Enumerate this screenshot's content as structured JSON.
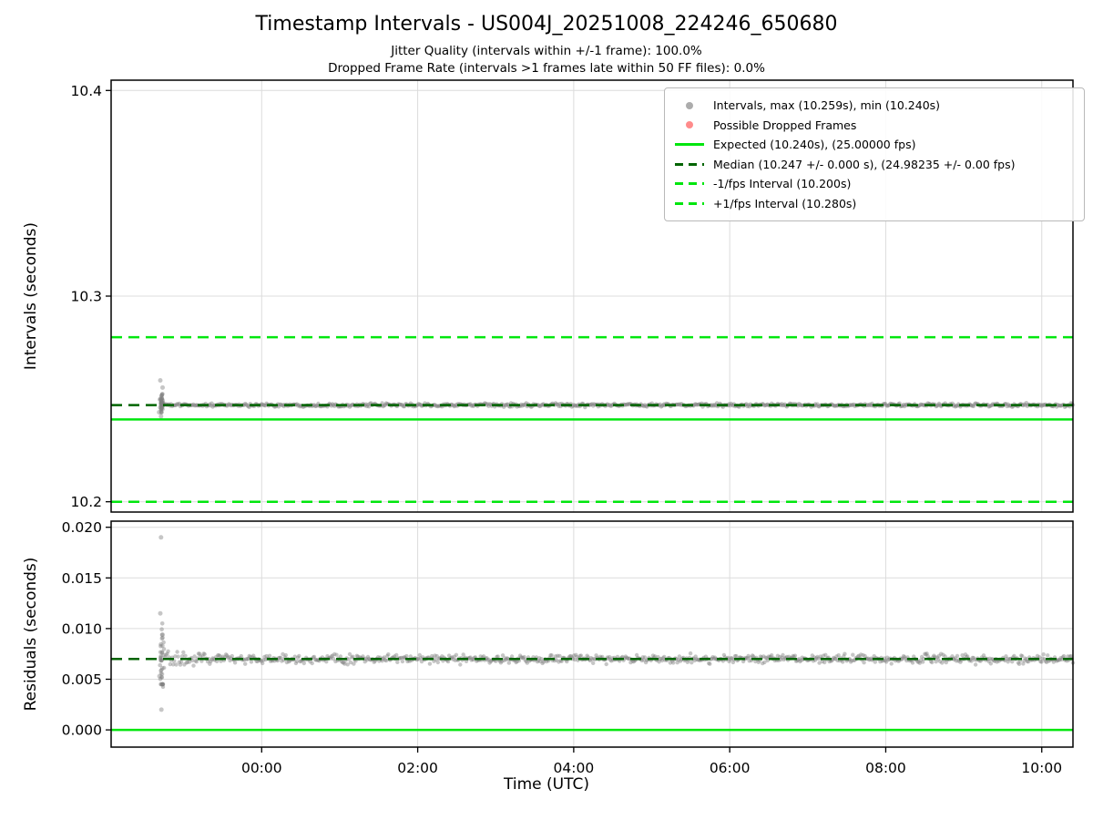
{
  "header": {
    "title": "Timestamp Intervals - US004J_20251008_224246_650680",
    "subtitle_jitter": "Jitter Quality (intervals within +/-1 frame): 100.0%",
    "subtitle_dropped": "Dropped Frame Rate (intervals >1 frames late within 50 FF files): 0.0%"
  },
  "colors": {
    "bright_green": "#00e60e",
    "dark_green": "#006400",
    "scatter_gray": "#808080",
    "dropped_red": "#ff4d4d",
    "grid": "#dcdcdc",
    "axis": "#000000",
    "legend_border": "#b9b9b9"
  },
  "chart_data": [
    {
      "type": "scatter",
      "name": "intervals",
      "ylabel": "Intervals (seconds)",
      "xlabel": "",
      "ylim": [
        10.195,
        10.405
      ],
      "xlim_hours": [
        -1.93,
        10.4
      ],
      "grid": true,
      "yticks": [
        {
          "value": 10.2,
          "label": "10.2"
        },
        {
          "value": 10.3,
          "label": "10.3"
        },
        {
          "value": 10.4,
          "label": "10.4"
        }
      ],
      "xticks": [
        {
          "hour": 0,
          "label": "00:00"
        },
        {
          "hour": 2,
          "label": "02:00"
        },
        {
          "hour": 4,
          "label": "04:00"
        },
        {
          "hour": 6,
          "label": "06:00"
        },
        {
          "hour": 8,
          "label": "08:00"
        },
        {
          "hour": 10,
          "label": "10:00"
        }
      ],
      "lines": [
        {
          "name": "expected",
          "value": 10.24,
          "style": "solid",
          "color": "bright_green"
        },
        {
          "name": "minus-1fps",
          "value": 10.2,
          "style": "dashed",
          "color": "bright_green"
        },
        {
          "name": "plus-1fps",
          "value": 10.28,
          "style": "dashed",
          "color": "bright_green"
        },
        {
          "name": "median",
          "value": 10.247,
          "style": "dashed",
          "color": "dark_green"
        }
      ],
      "series": {
        "band": {
          "start_hour": -1.29,
          "end_hour": 10.4,
          "value": 10.247,
          "spread": 0.0007,
          "count": 900
        },
        "cluster": {
          "hour": -1.28,
          "hour_spread": 0.02,
          "center": 10.2475,
          "spread": 0.004,
          "min": 10.2405,
          "max": 10.2565,
          "count": 45
        },
        "outliers": [
          [
            -1.3,
            10.259
          ],
          [
            -1.315,
            10.2435
          ],
          [
            -1.29,
            10.2415
          ],
          [
            -1.27,
            10.2555
          ]
        ]
      },
      "legend": [
        {
          "marker": "dot",
          "color": "scatter_gray",
          "label": "Intervals, max (10.259s), min (10.240s)"
        },
        {
          "marker": "dot",
          "color": "dropped_red",
          "label": "Possible Dropped Frames"
        },
        {
          "marker": "line-solid",
          "color": "bright_green",
          "label": "Expected (10.240s), (25.00000 fps)"
        },
        {
          "marker": "line-dashed",
          "color": "dark_green",
          "label": "Median (10.247 +/- 0.000 s), (24.98235 +/- 0.00 fps)"
        },
        {
          "marker": "line-dashed",
          "color": "bright_green",
          "label": "-1/fps Interval (10.200s)"
        },
        {
          "marker": "line-dashed",
          "color": "bright_green",
          "label": "+1/fps Interval (10.280s)"
        }
      ]
    },
    {
      "type": "scatter",
      "name": "residuals",
      "ylabel": "Residuals (seconds)",
      "xlabel": "Time (UTC)",
      "ylim": [
        -0.0017,
        0.0206
      ],
      "xlim_hours": [
        -1.93,
        10.4
      ],
      "grid": true,
      "yticks": [
        {
          "value": 0.0,
          "label": "0.000"
        },
        {
          "value": 0.005,
          "label": "0.005"
        },
        {
          "value": 0.01,
          "label": "0.010"
        },
        {
          "value": 0.015,
          "label": "0.015"
        },
        {
          "value": 0.02,
          "label": "0.020"
        }
      ],
      "xticks": [
        {
          "hour": 0,
          "label": "00:00"
        },
        {
          "hour": 2,
          "label": "02:00"
        },
        {
          "hour": 4,
          "label": "04:00"
        },
        {
          "hour": 6,
          "label": "06:00"
        },
        {
          "hour": 8,
          "label": "08:00"
        },
        {
          "hour": 10,
          "label": "10:00"
        }
      ],
      "lines": [
        {
          "name": "zero",
          "value": 0.0,
          "style": "solid",
          "color": "bright_green"
        },
        {
          "name": "median-residual",
          "value": 0.007,
          "style": "dashed",
          "color": "dark_green"
        }
      ],
      "series": {
        "band": {
          "start_hour": -1.29,
          "end_hour": 10.4,
          "value": 0.007,
          "spread": 0.00035,
          "funnel_extra": 0.0021,
          "funnel_tau": 0.2,
          "count": 900
        },
        "cluster": {
          "hour": -1.28,
          "hour_spread": 0.02,
          "center": 0.007,
          "spread": 0.0035,
          "min": 0.0045,
          "max": 0.0105,
          "count": 35
        },
        "outliers": [
          [
            -1.29,
            0.019
          ],
          [
            -1.3,
            0.0115
          ],
          [
            -1.285,
            0.002
          ],
          [
            -1.31,
            0.0053
          ],
          [
            -1.27,
            0.0094
          ]
        ]
      }
    }
  ]
}
